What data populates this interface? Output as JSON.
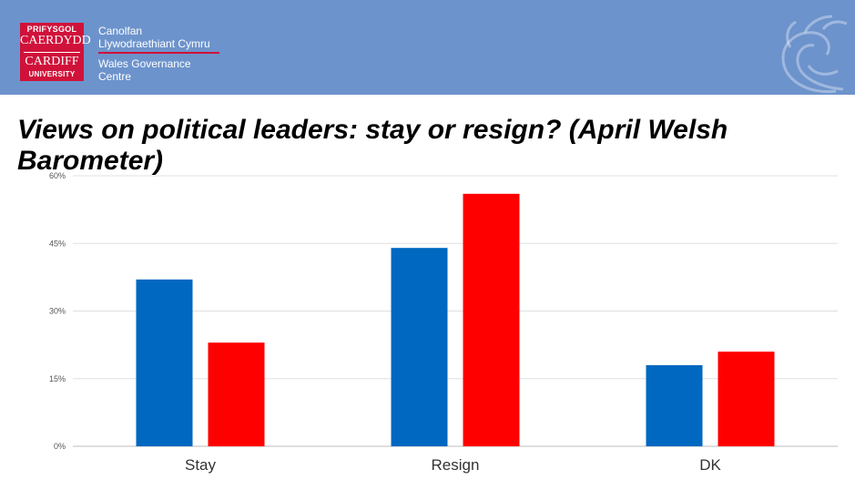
{
  "header": {
    "logo": {
      "line1": "PRIFYSGOL",
      "line2": "CAERDYDD",
      "line3": "CARDIFF",
      "line4": "UNIVERSITY"
    },
    "centre_welsh": [
      "Canolfan",
      "Llywodraethiant Cymru"
    ],
    "centre_english": [
      "Wales Governance",
      "Centre"
    ],
    "accent_color": "#d0123a",
    "background_color": "#6d93cc",
    "watermark_icon": "dragon-icon"
  },
  "title": "Views on political leaders: stay or resign? (April Welsh Barometer)",
  "chart_data": {
    "type": "bar",
    "title": "",
    "xlabel": "",
    "ylabel": "",
    "categories": [
      "Stay",
      "Resign",
      "DK"
    ],
    "series": [
      {
        "color": "#0068c0",
        "values": [
          37,
          44,
          18
        ]
      },
      {
        "color": "#fe0000",
        "values": [
          23,
          56,
          21
        ]
      }
    ],
    "ylim": [
      0,
      60
    ],
    "yticks": [
      0,
      15,
      30,
      45,
      60
    ],
    "ytick_labels": [
      "0%",
      "15%",
      "30%",
      "45%",
      "60%"
    ],
    "grid": true,
    "legend": "none"
  }
}
